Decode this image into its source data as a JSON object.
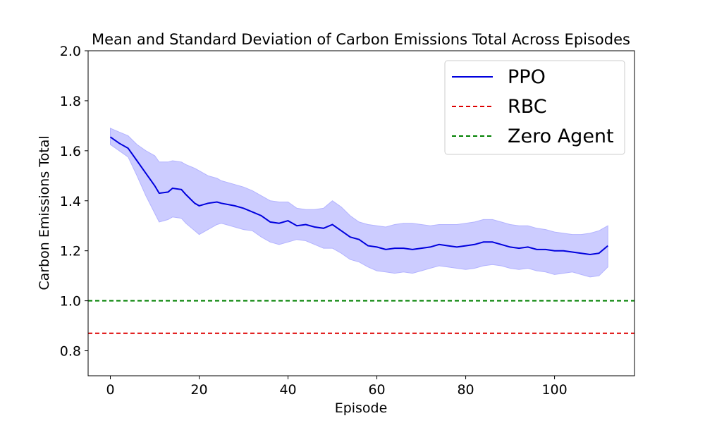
{
  "chart_data": {
    "type": "line",
    "title": "Mean and Standard Deviation of Carbon Emissions Total Across Episodes",
    "xlabel": "Episode",
    "ylabel": "Carbon Emissions Total",
    "xlim": [
      -5,
      118
    ],
    "ylim": [
      0.7,
      2.0
    ],
    "xticks": [
      0,
      20,
      40,
      60,
      80,
      100
    ],
    "yticks": [
      0.8,
      1.0,
      1.2,
      1.4,
      1.6,
      1.8,
      2.0
    ],
    "xtick_labels": [
      "0",
      "20",
      "40",
      "60",
      "80",
      "100"
    ],
    "ytick_labels": [
      "0.8",
      "1.0",
      "1.2",
      "1.4",
      "1.6",
      "1.8",
      "2.0"
    ],
    "legend_position": "top-right",
    "grid": false,
    "series": [
      {
        "name": "PPO",
        "color": "#0000dd",
        "band_color": "#ccccff",
        "style": "solid",
        "points": [
          [
            0,
            1.655,
            1.625,
            1.69
          ],
          [
            2,
            1.63,
            1.6,
            1.675
          ],
          [
            4,
            1.61,
            1.575,
            1.66
          ],
          [
            6,
            1.56,
            1.5,
            1.625
          ],
          [
            8,
            1.51,
            1.42,
            1.6
          ],
          [
            10,
            1.46,
            1.35,
            1.58
          ],
          [
            11,
            1.43,
            1.315,
            1.555
          ],
          [
            13,
            1.435,
            1.325,
            1.555
          ],
          [
            14,
            1.45,
            1.335,
            1.56
          ],
          [
            16,
            1.445,
            1.33,
            1.555
          ],
          [
            17,
            1.425,
            1.31,
            1.545
          ],
          [
            19,
            1.39,
            1.28,
            1.53
          ],
          [
            20,
            1.38,
            1.265,
            1.52
          ],
          [
            22,
            1.39,
            1.285,
            1.5
          ],
          [
            24,
            1.395,
            1.305,
            1.49
          ],
          [
            25,
            1.39,
            1.31,
            1.48
          ],
          [
            28,
            1.38,
            1.295,
            1.465
          ],
          [
            30,
            1.37,
            1.285,
            1.455
          ],
          [
            32,
            1.355,
            1.28,
            1.44
          ],
          [
            34,
            1.34,
            1.255,
            1.42
          ],
          [
            36,
            1.315,
            1.235,
            1.4
          ],
          [
            38,
            1.31,
            1.225,
            1.395
          ],
          [
            40,
            1.32,
            1.235,
            1.395
          ],
          [
            42,
            1.3,
            1.245,
            1.37
          ],
          [
            44,
            1.305,
            1.24,
            1.365
          ],
          [
            46,
            1.295,
            1.225,
            1.365
          ],
          [
            48,
            1.29,
            1.21,
            1.37
          ],
          [
            50,
            1.305,
            1.21,
            1.4
          ],
          [
            52,
            1.28,
            1.19,
            1.375
          ],
          [
            54,
            1.255,
            1.165,
            1.34
          ],
          [
            56,
            1.245,
            1.155,
            1.315
          ],
          [
            58,
            1.22,
            1.135,
            1.305
          ],
          [
            60,
            1.215,
            1.12,
            1.3
          ],
          [
            62,
            1.205,
            1.115,
            1.295
          ],
          [
            64,
            1.21,
            1.11,
            1.305
          ],
          [
            66,
            1.21,
            1.115,
            1.31
          ],
          [
            68,
            1.205,
            1.11,
            1.31
          ],
          [
            70,
            1.21,
            1.12,
            1.305
          ],
          [
            72,
            1.215,
            1.13,
            1.3
          ],
          [
            74,
            1.225,
            1.14,
            1.305
          ],
          [
            76,
            1.22,
            1.135,
            1.305
          ],
          [
            78,
            1.215,
            1.13,
            1.305
          ],
          [
            80,
            1.22,
            1.125,
            1.31
          ],
          [
            82,
            1.225,
            1.13,
            1.315
          ],
          [
            84,
            1.235,
            1.14,
            1.325
          ],
          [
            86,
            1.235,
            1.145,
            1.325
          ],
          [
            88,
            1.225,
            1.14,
            1.315
          ],
          [
            90,
            1.215,
            1.13,
            1.305
          ],
          [
            92,
            1.21,
            1.125,
            1.3
          ],
          [
            94,
            1.215,
            1.13,
            1.3
          ],
          [
            96,
            1.205,
            1.12,
            1.29
          ],
          [
            98,
            1.205,
            1.115,
            1.285
          ],
          [
            100,
            1.2,
            1.105,
            1.275
          ],
          [
            102,
            1.2,
            1.11,
            1.27
          ],
          [
            104,
            1.195,
            1.115,
            1.265
          ],
          [
            106,
            1.19,
            1.105,
            1.265
          ],
          [
            108,
            1.185,
            1.095,
            1.27
          ],
          [
            110,
            1.19,
            1.1,
            1.28
          ],
          [
            112,
            1.22,
            1.135,
            1.3
          ]
        ]
      },
      {
        "name": "RBC",
        "color": "#dd0000",
        "style": "dashed",
        "value": 0.87
      },
      {
        "name": "Zero Agent",
        "color": "#008000",
        "style": "dashed",
        "value": 1.0
      }
    ]
  }
}
